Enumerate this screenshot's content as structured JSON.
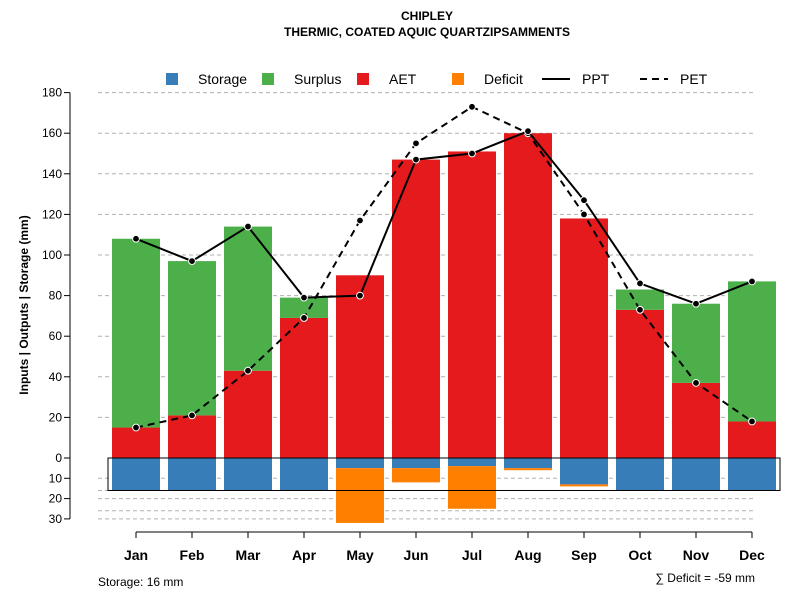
{
  "chart_data": {
    "type": "bar",
    "title": "CHIPLEY",
    "subtitle": "THERMIC, COATED AQUIC QUARTZIPSAMMENTS",
    "ylabel": "Inputs | Outputs | Storage    (mm)",
    "xlabel": "",
    "ylim": [
      -30,
      180
    ],
    "yticks_upper": [
      0,
      20,
      40,
      60,
      80,
      100,
      120,
      140,
      160,
      180
    ],
    "yticks_lower": [
      10,
      20,
      30
    ],
    "categories": [
      "Jan",
      "Feb",
      "Mar",
      "Apr",
      "May",
      "Jun",
      "Jul",
      "Aug",
      "Sep",
      "Oct",
      "Nov",
      "Dec"
    ],
    "series": [
      {
        "name": "Storage",
        "values": [
          16,
          16,
          16,
          16,
          5,
          5,
          4,
          5,
          13,
          16,
          16,
          16
        ]
      },
      {
        "name": "Surplus",
        "values": [
          93,
          76,
          71,
          10,
          0,
          0,
          0,
          0,
          0,
          10,
          39,
          69
        ]
      },
      {
        "name": "AET",
        "values": [
          15,
          21,
          43,
          69,
          90,
          147,
          151,
          160,
          118,
          73,
          37,
          18
        ]
      },
      {
        "name": "Deficit",
        "values": [
          0,
          0,
          0,
          0,
          27,
          7,
          21,
          1,
          1,
          0,
          0,
          0
        ]
      },
      {
        "name": "PPT",
        "values": [
          108,
          97,
          114,
          79,
          80,
          147,
          150,
          161,
          127,
          86,
          76,
          87
        ]
      },
      {
        "name": "PET",
        "values": [
          15,
          21,
          43,
          69,
          117,
          155,
          173,
          160,
          120,
          73,
          37,
          18
        ]
      }
    ],
    "legend": [
      {
        "label": "Storage",
        "kind": "box",
        "color": "#377eb8"
      },
      {
        "label": "Surplus",
        "kind": "box",
        "color": "#4daf4a"
      },
      {
        "label": "AET",
        "kind": "box",
        "color": "#e41a1c"
      },
      {
        "label": "Deficit",
        "kind": "box",
        "color": "#ff7f00"
      },
      {
        "label": "PPT",
        "kind": "solid-line",
        "color": "#000000"
      },
      {
        "label": "PET",
        "kind": "dashed-line",
        "color": "#000000"
      }
    ],
    "legend_position": "top",
    "storage_capacity": 16,
    "storage_note": "Storage: 16 mm",
    "deficit_note": "∑ Deficit = -59 mm",
    "grid": true
  }
}
